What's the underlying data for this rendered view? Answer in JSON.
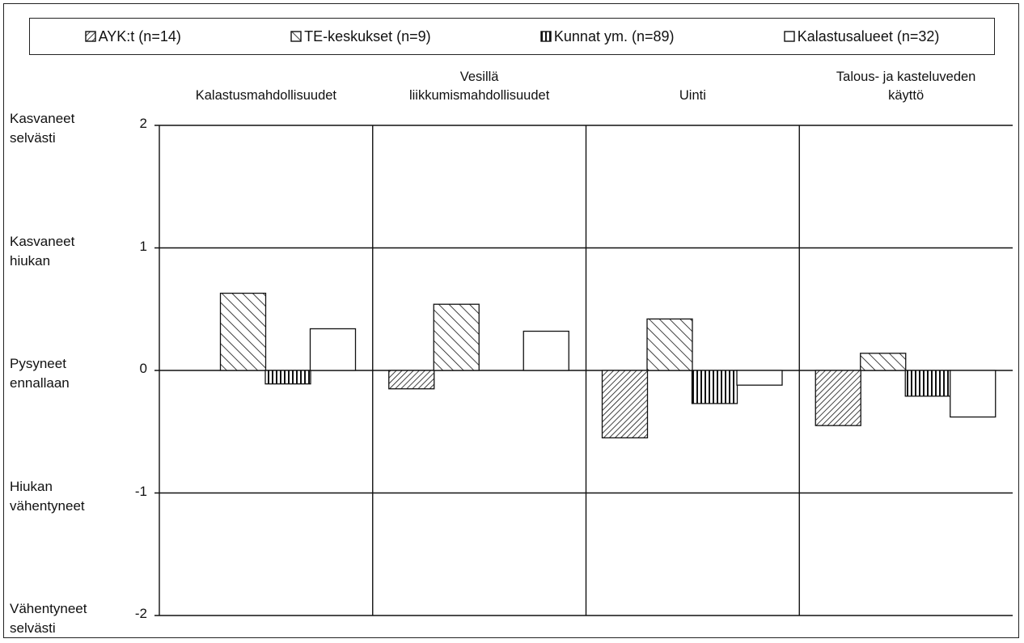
{
  "legend": [
    {
      "label": "AYK:t (n=14)",
      "pattern": "hatch-dense"
    },
    {
      "label": "TE-keskukset (n=9)",
      "pattern": "hatch-wide"
    },
    {
      "label": "Kunnat ym. (n=89)",
      "pattern": "vertical"
    },
    {
      "label": "Kalastusalueet (n=32)",
      "pattern": "none"
    }
  ],
  "categories": [
    {
      "lines": [
        "",
        "Kalastusmahdollisuudet"
      ]
    },
    {
      "lines": [
        "Vesillä",
        "liikkumismahdollisuudet"
      ]
    },
    {
      "lines": [
        "",
        "Uinti"
      ]
    },
    {
      "lines": [
        "Talous- ja kasteluveden",
        "käyttö"
      ]
    }
  ],
  "levels": [
    {
      "lines": [
        "Kasvaneet",
        "selvästi"
      ],
      "tick": "2"
    },
    {
      "lines": [
        "Kasvaneet",
        "hiukan"
      ],
      "tick": "1"
    },
    {
      "lines": [
        "Pysyneet",
        "ennallaan"
      ],
      "tick": "0"
    },
    {
      "lines": [
        "Hiukan",
        "vähentyneet"
      ],
      "tick": "-1"
    },
    {
      "lines": [
        "Vähentyneet",
        "selvästi"
      ],
      "tick": "-2"
    }
  ],
  "chart_data": {
    "type": "bar",
    "categories": [
      "Kalastusmahdollisuudet",
      "Vesillä liikkumismahdollisuudet",
      "Uinti",
      "Talous- ja kasteluveden käyttö"
    ],
    "series": [
      {
        "name": "AYK:t (n=14)",
        "values": [
          0,
          -0.15,
          -0.55,
          -0.45
        ]
      },
      {
        "name": "TE-keskukset (n=9)",
        "values": [
          0.63,
          0.54,
          0.42,
          0.14
        ]
      },
      {
        "name": "Kunnat ym. (n=89)",
        "values": [
          -0.11,
          0,
          -0.27,
          -0.21
        ]
      },
      {
        "name": "Kalastusalueet (n=32)",
        "values": [
          0.34,
          0.32,
          -0.12,
          -0.38
        ]
      }
    ],
    "ylim": [
      -2,
      2
    ],
    "yticks": [
      2,
      1,
      0,
      -1,
      -2
    ],
    "grid": true,
    "legend_position": "top"
  }
}
